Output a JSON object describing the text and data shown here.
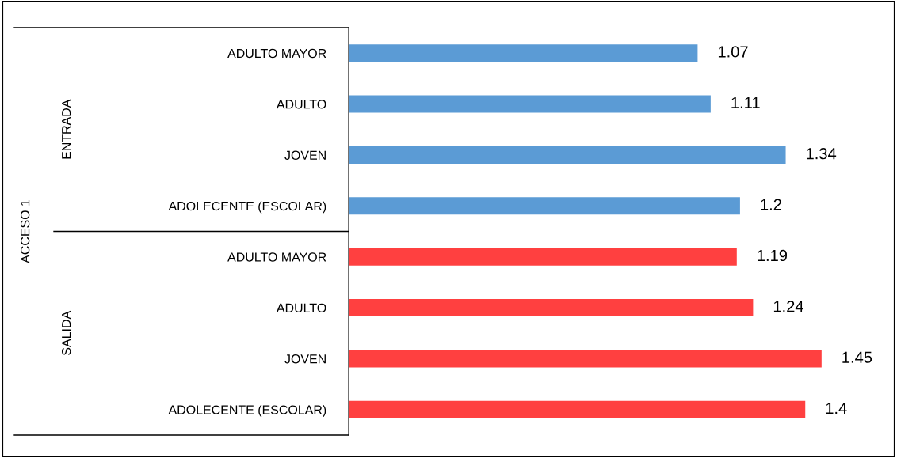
{
  "chart_data": {
    "type": "bar",
    "orientation": "horizontal",
    "data_labels": true,
    "grid": false,
    "tick_labels": "y",
    "categories": [
      "ADULTO MAYOR",
      "ADULTO",
      "JOVEN",
      "ADOLECENTE (ESCOLAR)",
      "ADULTO MAYOR",
      "ADULTO",
      "JOVEN",
      "ADOLECENTE (ESCOLAR)"
    ],
    "values": [
      1.07,
      1.11,
      1.34,
      1.2,
      1.19,
      1.24,
      1.45,
      1.4
    ],
    "colors": [
      "#5b9bd5",
      "#5b9bd5",
      "#5b9bd5",
      "#5b9bd5",
      "#ff4040",
      "#ff4040",
      "#ff4040",
      "#ff4040"
    ],
    "annotations": [
      "ACCESO 1",
      "ENTRADA",
      "SALIDA"
    ]
  }
}
